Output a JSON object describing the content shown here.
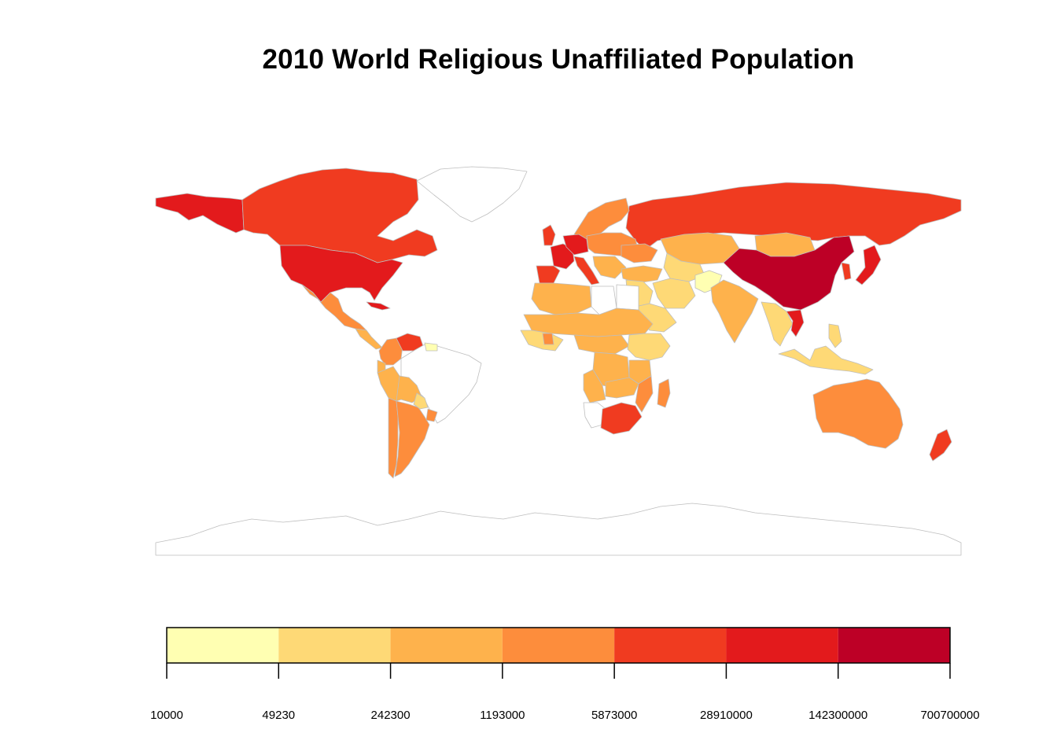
{
  "title": "2010 World Religious Unaffiliated Population",
  "legend": {
    "bins": [
      {
        "from": "10000",
        "to": "49230",
        "color": "#FFFFB2"
      },
      {
        "from": "49230",
        "to": "242300",
        "color": "#FED976"
      },
      {
        "from": "242300",
        "to": "1193000",
        "color": "#FEB24C"
      },
      {
        "from": "1193000",
        "to": "5873000",
        "color": "#FD8D3C"
      },
      {
        "from": "5873000",
        "to": "28910000",
        "color": "#F03B20"
      },
      {
        "from": "28910000",
        "to": "142300000",
        "color": "#E31A1C"
      },
      {
        "from": "142300000",
        "to": "700700000",
        "color": "#BD0026"
      }
    ],
    "ticks": [
      "10000",
      "49230",
      "242300",
      "1193000",
      "5873000",
      "28910000",
      "142300000",
      "700700000"
    ]
  },
  "colors": {
    "border": "#BEBEBE",
    "nodata": "#FFFFFF"
  },
  "regions": [
    {
      "name": "Alaska",
      "bin": 5
    },
    {
      "name": "Canada",
      "bin": 4
    },
    {
      "name": "Greenland",
      "bin": -1
    },
    {
      "name": "United States",
      "bin": 5
    },
    {
      "name": "Mexico",
      "bin": 3
    },
    {
      "name": "Central America",
      "bin": 2
    },
    {
      "name": "Cuba",
      "bin": 5
    },
    {
      "name": "Colombia",
      "bin": 3
    },
    {
      "name": "Venezuela",
      "bin": 4
    },
    {
      "name": "Ecuador",
      "bin": 2
    },
    {
      "name": "Peru",
      "bin": 2
    },
    {
      "name": "Brazil",
      "bin": -1
    },
    {
      "name": "Bolivia",
      "bin": 2
    },
    {
      "name": "Chile",
      "bin": 3
    },
    {
      "name": "Argentina",
      "bin": 3
    },
    {
      "name": "Paraguay",
      "bin": 1
    },
    {
      "name": "Uruguay",
      "bin": 3
    },
    {
      "name": "Guianas",
      "bin": 0
    },
    {
      "name": "Russia",
      "bin": 4
    },
    {
      "name": "Scandinavia",
      "bin": 3
    },
    {
      "name": "UK",
      "bin": 4
    },
    {
      "name": "France",
      "bin": 5
    },
    {
      "name": "Iberia",
      "bin": 4
    },
    {
      "name": "Germany",
      "bin": 5
    },
    {
      "name": "Italy",
      "bin": 4
    },
    {
      "name": "Eastern Europe",
      "bin": 3
    },
    {
      "name": "Ukraine",
      "bin": 3
    },
    {
      "name": "Balkans",
      "bin": 2
    },
    {
      "name": "Turkey",
      "bin": 2
    },
    {
      "name": "Kazakhstan",
      "bin": 2
    },
    {
      "name": "Mongolia",
      "bin": 2
    },
    {
      "name": "China",
      "bin": 6
    },
    {
      "name": "Korea",
      "bin": 4
    },
    {
      "name": "Japan",
      "bin": 5
    },
    {
      "name": "Central Asia",
      "bin": 1
    },
    {
      "name": "Iran",
      "bin": 1
    },
    {
      "name": "Afghanistan",
      "bin": 0
    },
    {
      "name": "India",
      "bin": 2
    },
    {
      "name": "Middle East",
      "bin": 1
    },
    {
      "name": "Saudi Arabia",
      "bin": 1
    },
    {
      "name": "North Africa West",
      "bin": 2
    },
    {
      "name": "Libya",
      "bin": -1
    },
    {
      "name": "Egypt",
      "bin": -1
    },
    {
      "name": "Sahel",
      "bin": 2
    },
    {
      "name": "West Africa",
      "bin": 1
    },
    {
      "name": "Ghana",
      "bin": 3
    },
    {
      "name": "Central Africa",
      "bin": 2
    },
    {
      "name": "DR Congo",
      "bin": 2
    },
    {
      "name": "East Africa",
      "bin": 1
    },
    {
      "name": "Tanzania",
      "bin": 2
    },
    {
      "name": "Angola",
      "bin": 2
    },
    {
      "name": "Zambia",
      "bin": 2
    },
    {
      "name": "Mozambique",
      "bin": 3
    },
    {
      "name": "Namibia",
      "bin": -1
    },
    {
      "name": "South Africa",
      "bin": 4
    },
    {
      "name": "Madagascar",
      "bin": 3
    },
    {
      "name": "Southeast Asia",
      "bin": 1
    },
    {
      "name": "Vietnam",
      "bin": 5
    },
    {
      "name": "Indonesia",
      "bin": 1
    },
    {
      "name": "Philippines",
      "bin": 1
    },
    {
      "name": "Australia",
      "bin": 3
    },
    {
      "name": "New Zealand",
      "bin": 4
    },
    {
      "name": "Antarctica",
      "bin": -1
    }
  ]
}
